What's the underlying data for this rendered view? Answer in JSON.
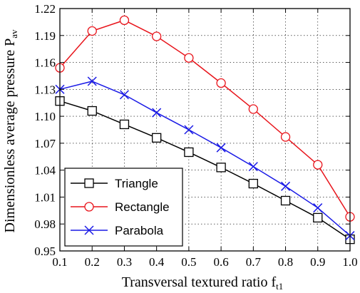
{
  "chart_data": {
    "type": "line",
    "title": "",
    "xlabel": "Transversal textured ratio f",
    "xlabel_sub": "t1",
    "ylabel": "Dimensionless average pressure P",
    "ylabel_sub": "av",
    "xlim": [
      0.1,
      1.0
    ],
    "ylim": [
      0.95,
      1.22
    ],
    "x_ticks": [
      0.1,
      0.2,
      0.3,
      0.4,
      0.5,
      0.6,
      0.7,
      0.8,
      0.9,
      1.0
    ],
    "x_tick_labels": [
      "0.1",
      "0.2",
      "0.3",
      "0.4",
      "0.5",
      "0.6",
      "0.7",
      "0.8",
      "0.9",
      "1.0"
    ],
    "y_ticks": [
      0.95,
      0.98,
      1.01,
      1.04,
      1.07,
      1.1,
      1.13,
      1.16,
      1.19,
      1.22
    ],
    "y_tick_labels": [
      "0.95",
      "0.98",
      "1.01",
      "1.04",
      "1.07",
      "1.10",
      "1.13",
      "1.16",
      "1.19",
      "1.22"
    ],
    "grid": true,
    "legend_position": "bottom-left",
    "x": [
      0.1,
      0.2,
      0.3,
      0.4,
      0.5,
      0.6,
      0.7,
      0.8,
      0.9,
      1.0
    ],
    "series": [
      {
        "name": "Triangle",
        "marker": "square",
        "color": "#000000",
        "values": [
          1.117,
          1.106,
          1.091,
          1.076,
          1.06,
          1.043,
          1.025,
          1.006,
          0.987,
          0.963
        ]
      },
      {
        "name": "Rectangle",
        "marker": "circle",
        "color": "#e8141b",
        "values": [
          1.154,
          1.195,
          1.207,
          1.189,
          1.165,
          1.137,
          1.108,
          1.077,
          1.046,
          0.988
        ]
      },
      {
        "name": "Parabola",
        "marker": "x",
        "color": "#1a1ae6",
        "values": [
          1.13,
          1.139,
          1.124,
          1.104,
          1.085,
          1.065,
          1.044,
          1.022,
          0.998,
          0.967
        ]
      }
    ]
  }
}
